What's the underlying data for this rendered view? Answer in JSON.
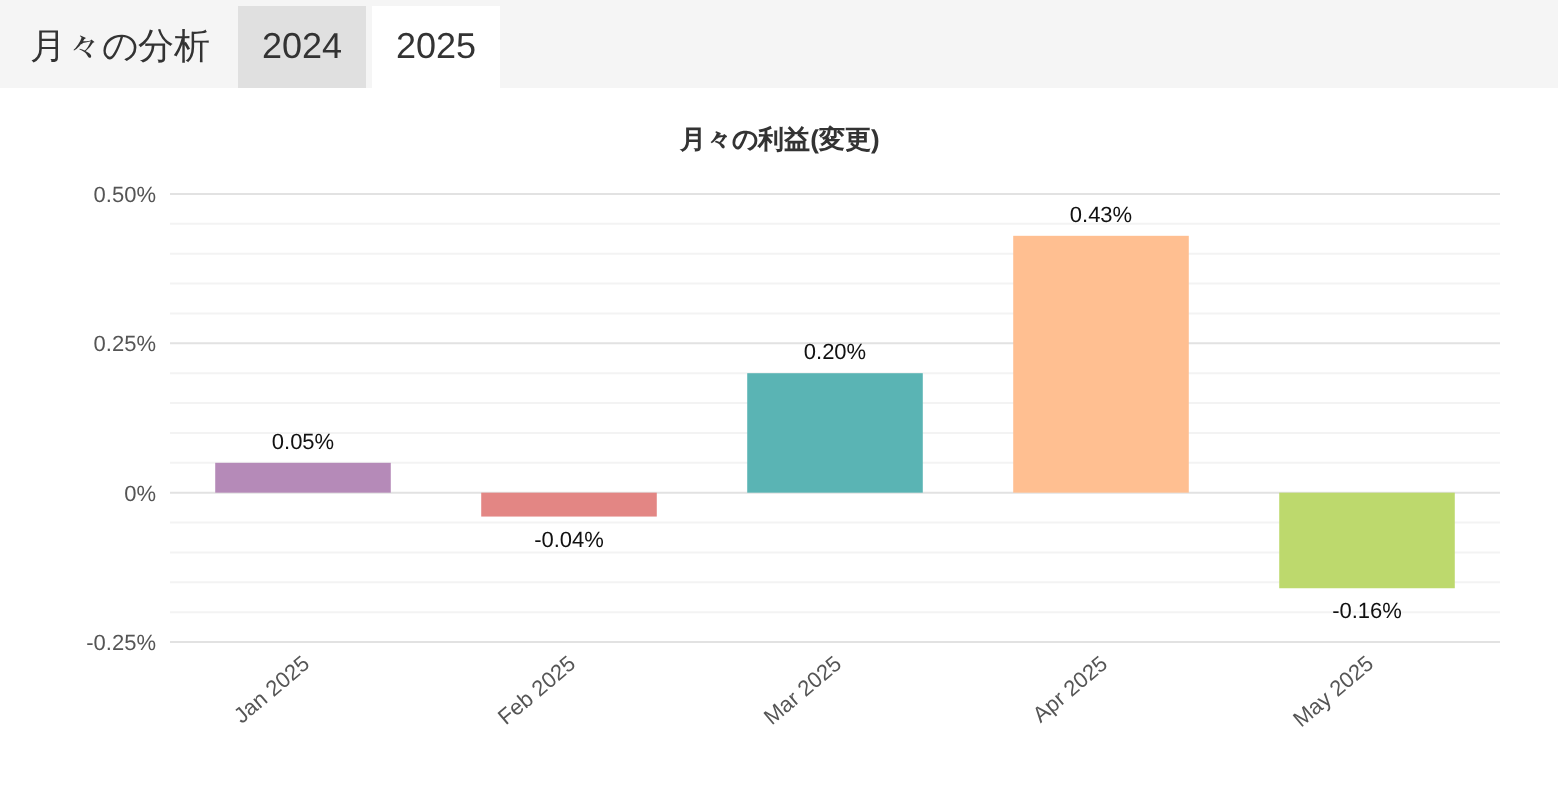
{
  "chart_data": {
    "type": "bar",
    "title": "月々の利益(変更)",
    "annotations": [
      "月々の分析",
      "2024",
      "2025"
    ],
    "categories": [
      "Jan 2025",
      "Feb 2025",
      "Mar 2025",
      "Apr 2025",
      "May 2025"
    ],
    "values": [
      0.05,
      -0.04,
      0.2,
      0.43,
      -0.16
    ],
    "value_labels": [
      "0.05%",
      "-0.04%",
      "0.20%",
      "0.43%",
      "-0.16%"
    ],
    "colors": [
      "#b58ab8",
      "#e38684",
      "#5ab4b4",
      "#ffbf91",
      "#bdd96d"
    ],
    "ylim": [
      -0.25,
      0.5
    ],
    "yticks": [
      {
        "value": -0.25,
        "label": "-0.25%"
      },
      {
        "value": 0,
        "label": "0%"
      },
      {
        "value": 0.25,
        "label": "0.25%"
      },
      {
        "value": 0.5,
        "label": "0.50%"
      }
    ],
    "grid": true
  }
}
